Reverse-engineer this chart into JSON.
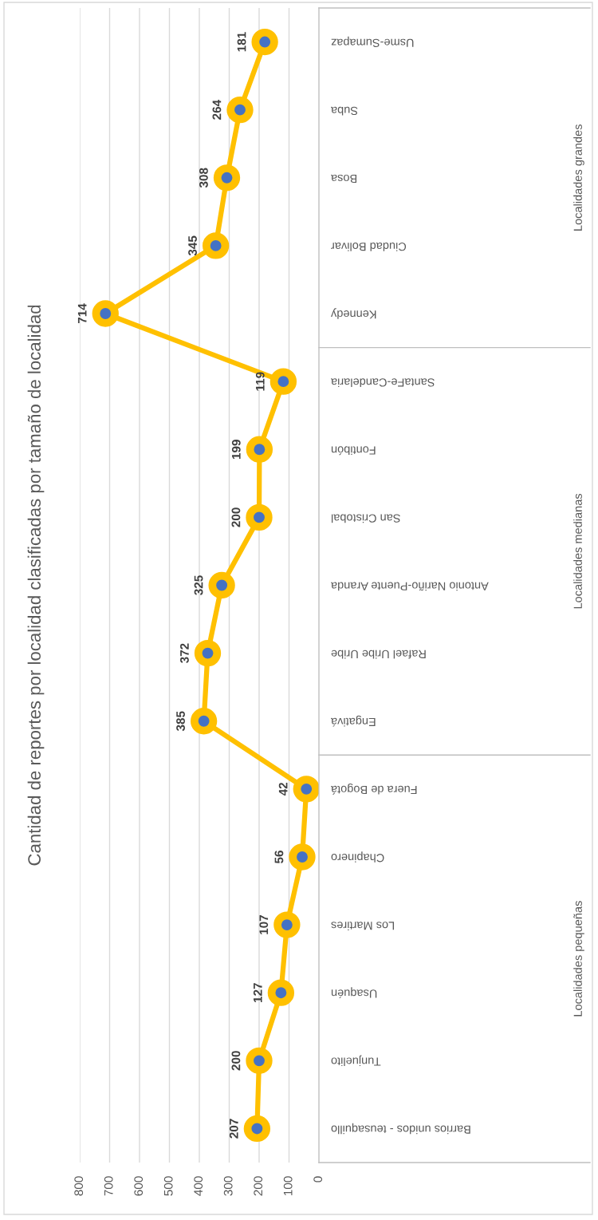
{
  "chart_data": {
    "type": "line",
    "orientation": "horizontal",
    "title": "Cantidad de reportes por localidad clasificadas por tamaño de localidad",
    "categories": [
      "Usme-Sumapaz",
      "Suba",
      "Bosa",
      "Ciudad Bolivar",
      "Kennedy",
      "SantaFe-Candelaria",
      "Fontibón",
      "San Cristobal",
      "Antonio Nariño-Puente Aranda",
      "Rafael Uribe Uribe",
      "Engativá",
      "Fuera de Bogotá",
      "Chapinero",
      "Los Martires",
      "Usaquén",
      "Tunjuelito",
      "Barrios unidos - teusaquillo"
    ],
    "values": [
      181,
      264,
      308,
      345,
      714,
      119,
      199,
      200,
      325,
      372,
      385,
      42,
      56,
      107,
      127,
      200,
      207
    ],
    "color": "#ffc000",
    "xlim": [
      800,
      0
    ],
    "xticks": [
      0,
      100,
      200,
      300,
      400,
      500,
      600,
      700,
      800
    ],
    "grid": "x",
    "marker": "circle",
    "line_style": "solid",
    "data_labels": true,
    "annotations": [
      "Localidades grandes",
      "Localidades medianas",
      "Localidades pequeñas"
    ]
  }
}
